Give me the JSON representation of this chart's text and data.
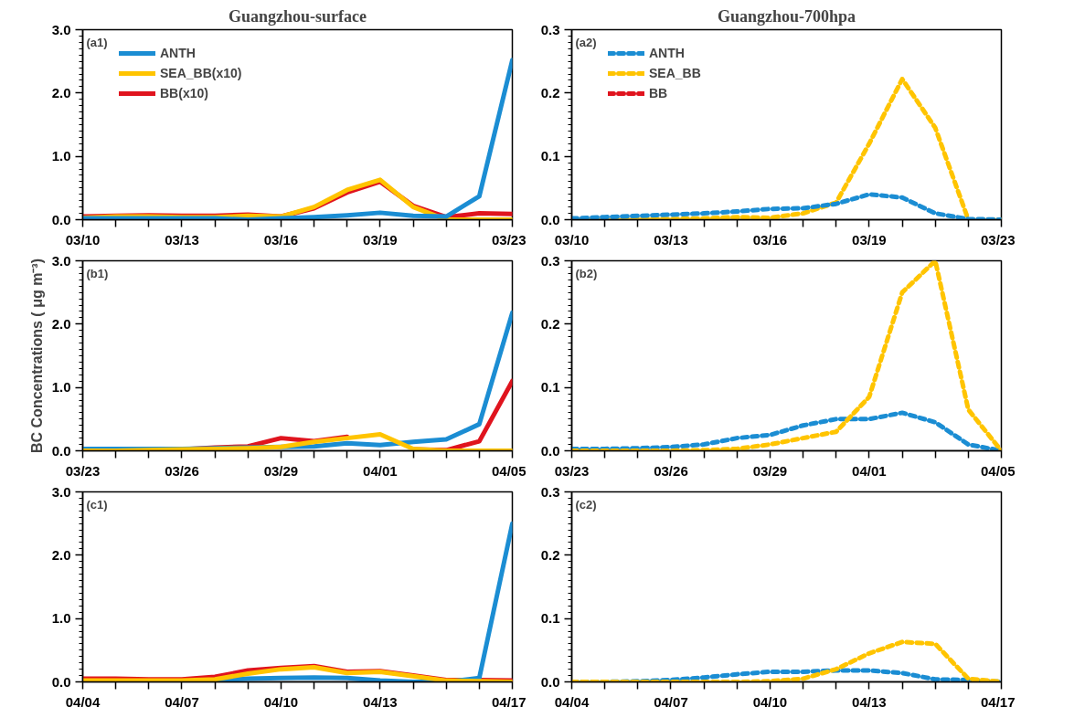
{
  "chart_data": [
    {
      "type": "line",
      "title": "Guangzhou-surface",
      "annotations": [
        "(a1)"
      ],
      "categories": [
        "03/10",
        null,
        null,
        "03/13",
        null,
        null,
        "03/16",
        null,
        null,
        "03/19",
        null,
        null,
        null,
        "03/23"
      ],
      "ylim": [
        0,
        3
      ],
      "yticks": [
        {
          "value": 0,
          "label": "0.0"
        },
        {
          "value": 1,
          "label": "1.0"
        },
        {
          "value": 2,
          "label": "2.0"
        },
        {
          "value": 3,
          "label": "3.0"
        }
      ],
      "legend": "top left",
      "line_style": "solid",
      "series": [
        {
          "name": "BB(x10)",
          "color": "#e0141e",
          "values": [
            0.05,
            0.06,
            0.07,
            0.06,
            0.06,
            0.08,
            0.05,
            0.18,
            0.43,
            0.6,
            0.22,
            0.04,
            0.1,
            0.09
          ]
        },
        {
          "name": "SEA_BB(x10)",
          "color": "#ffc400",
          "values": [
            0.03,
            0.05,
            0.05,
            0.04,
            0.04,
            0.06,
            0.05,
            0.2,
            0.47,
            0.63,
            0.2,
            0.0,
            0.0,
            0.0
          ]
        },
        {
          "name": "ANTH",
          "color": "#1b8dd3",
          "values": [
            0.02,
            0.02,
            0.02,
            0.02,
            0.02,
            0.0,
            0.02,
            0.04,
            0.07,
            0.11,
            0.06,
            0.05,
            0.37,
            2.52
          ]
        }
      ]
    },
    {
      "type": "line",
      "title": "Guangzhou-700hpa",
      "annotations": [
        "(a2)"
      ],
      "categories": [
        "03/10",
        null,
        null,
        "03/13",
        null,
        null,
        "03/16",
        null,
        null,
        "03/19",
        null,
        null,
        null,
        "03/23"
      ],
      "ylim": [
        0,
        0.3
      ],
      "yticks": [
        {
          "value": 0,
          "label": "0.0"
        },
        0.1,
        0.2,
        0.3
      ],
      "legend": "top left",
      "line_style": "dashed",
      "series": [
        {
          "name": "BB",
          "color": "#e0141e",
          "values": [
            null,
            null,
            null,
            null,
            null,
            null,
            null,
            null,
            null,
            null,
            null,
            null,
            null,
            null
          ]
        },
        {
          "name": "SEA_BB",
          "color": "#ffc400",
          "values": [
            0.0,
            0.0,
            0.001,
            0.001,
            0.002,
            0.004,
            0.003,
            0.01,
            0.027,
            0.12,
            0.222,
            0.145,
            0.0,
            0.0
          ]
        },
        {
          "name": "ANTH",
          "color": "#1b8dd3",
          "values": [
            0.002,
            0.004,
            0.006,
            0.008,
            0.01,
            0.013,
            0.017,
            0.018,
            0.025,
            0.04,
            0.035,
            0.01,
            0.001,
            0.0
          ]
        }
      ]
    },
    {
      "type": "line",
      "ylabel": "BC Concentrations ( μg m⁻³)",
      "annotations": [
        "(b1)"
      ],
      "categories": [
        "03/23",
        null,
        null,
        "03/26",
        null,
        null,
        "03/29",
        null,
        null,
        "04/01",
        null,
        null,
        null,
        "04/05"
      ],
      "ylim": [
        0,
        3
      ],
      "yticks": [
        {
          "value": 0,
          "label": "0.0"
        },
        {
          "value": 1,
          "label": "1.0"
        },
        {
          "value": 2,
          "label": "2.0"
        },
        {
          "value": 3,
          "label": "3.0"
        }
      ],
      "line_style": "solid",
      "series": [
        {
          "color": "#e0141e",
          "values": [
            null,
            null,
            null,
            0.02,
            0.05,
            0.07,
            0.2,
            0.15,
            0.22,
            null,
            0.02,
            0.01,
            0.15,
            1.1
          ]
        },
        {
          "color": "#1b8dd3",
          "values": [
            0.03,
            0.03,
            0.03,
            0.03,
            0.04,
            0.05,
            0.06,
            0.07,
            0.12,
            0.09,
            0.14,
            0.18,
            0.42,
            2.18
          ]
        },
        {
          "color": "#ffc400",
          "values": [
            0.0,
            0.0,
            0.01,
            0.02,
            0.03,
            0.04,
            0.06,
            0.14,
            0.2,
            0.26,
            0.03,
            0.0,
            0.0,
            0.0
          ]
        }
      ]
    },
    {
      "type": "line",
      "annotations": [
        "(b2)"
      ],
      "categories": [
        "03/23",
        null,
        null,
        "03/26",
        null,
        null,
        "03/29",
        null,
        null,
        "04/01",
        null,
        null,
        null,
        "04/05"
      ],
      "ylim": [
        0,
        0.3
      ],
      "yticks": [
        {
          "value": 0,
          "label": "0.0"
        },
        0.1,
        0.2,
        0.3
      ],
      "line_style": "dashed",
      "series": [
        {
          "color": "#1b8dd3",
          "values": [
            0.003,
            0.003,
            0.004,
            0.006,
            0.01,
            0.02,
            0.025,
            0.04,
            0.05,
            0.05,
            0.06,
            0.045,
            0.01,
            0.0
          ]
        },
        {
          "color": "#ffc400",
          "values": [
            0.0,
            0.0,
            0.0,
            0.0,
            0.001,
            0.003,
            0.01,
            0.02,
            0.03,
            0.085,
            0.25,
            0.3,
            0.065,
            0.0
          ]
        }
      ]
    },
    {
      "type": "line",
      "annotations": [
        "(c1)"
      ],
      "categories": [
        "04/04",
        null,
        null,
        "04/07",
        null,
        null,
        "04/10",
        null,
        null,
        "04/13",
        null,
        null,
        null,
        "04/17"
      ],
      "ylim": [
        0,
        3
      ],
      "yticks": [
        {
          "value": 0,
          "label": "0.0"
        },
        {
          "value": 1,
          "label": "1.0"
        },
        {
          "value": 2,
          "label": "2.0"
        },
        {
          "value": 3,
          "label": "3.0"
        }
      ],
      "line_style": "solid",
      "series": [
        {
          "color": "#e0141e",
          "values": [
            0.05,
            0.05,
            0.04,
            0.04,
            0.08,
            0.18,
            0.22,
            0.25,
            0.16,
            0.17,
            0.1,
            0.03,
            0.03,
            0.02
          ]
        },
        {
          "color": "#1b8dd3",
          "values": [
            null,
            null,
            null,
            0.01,
            0.03,
            0.05,
            0.06,
            0.07,
            0.06,
            0.02,
            0.0,
            0.0,
            0.06,
            2.5
          ]
        },
        {
          "color": "#ffc400",
          "values": [
            0.02,
            0.02,
            0.02,
            0.02,
            0.04,
            0.13,
            0.2,
            0.23,
            0.14,
            0.16,
            0.09,
            0.02,
            0.01,
            0.0
          ]
        }
      ]
    },
    {
      "type": "line",
      "annotations": [
        "(c2)"
      ],
      "categories": [
        "04/04",
        null,
        null,
        "04/07",
        null,
        null,
        "04/10",
        null,
        null,
        "04/13",
        null,
        null,
        null,
        "04/17"
      ],
      "ylim": [
        0,
        0.3
      ],
      "yticks": [
        {
          "value": 0,
          "label": "0.0"
        },
        0.1,
        0.2,
        0.3
      ],
      "line_style": "dashed",
      "series": [
        {
          "color": "#1b8dd3",
          "values": [
            0.0,
            0.0,
            0.001,
            0.003,
            0.007,
            0.012,
            0.016,
            0.016,
            0.018,
            0.018,
            0.014,
            0.004,
            0.003,
            0.0
          ]
        },
        {
          "color": "#ffc400",
          "values": [
            0.0,
            0.0,
            0.0,
            0.0,
            0.0,
            0.0,
            0.001,
            0.005,
            0.02,
            0.045,
            0.063,
            0.06,
            0.005,
            0.0
          ]
        }
      ]
    }
  ]
}
